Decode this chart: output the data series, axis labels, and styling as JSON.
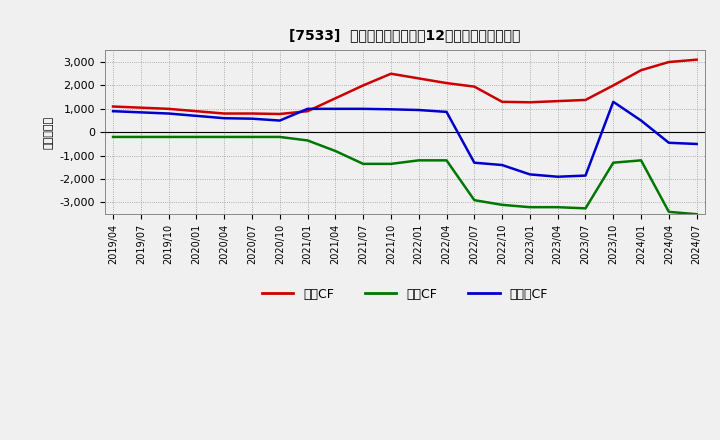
{
  "title": "[7533]  キャッシュフローの12か月移動合計の推移",
  "ylabel": "（百万円）",
  "background_color": "#f0f0f0",
  "plot_bg_color": "#f0f0f0",
  "grid_color": "#aaaaaa",
  "x_labels": [
    "2019/04",
    "2019/07",
    "2019/10",
    "2020/01",
    "2020/04",
    "2020/07",
    "2020/10",
    "2021/01",
    "2021/04",
    "2021/07",
    "2021/10",
    "2022/01",
    "2022/04",
    "2022/07",
    "2022/10",
    "2023/01",
    "2023/04",
    "2023/07",
    "2023/10",
    "2024/01",
    "2024/04",
    "2024/07"
  ],
  "operating_cf": [
    1100,
    1050,
    1000,
    900,
    800,
    800,
    780,
    900,
    1450,
    2000,
    2500,
    2300,
    2100,
    1950,
    1300,
    1280,
    1330,
    1380,
    2000,
    2650,
    3000,
    3100
  ],
  "investing_cf": [
    -200,
    -200,
    -200,
    -200,
    -200,
    -200,
    -200,
    -350,
    -800,
    -1350,
    -1350,
    -1200,
    -1200,
    -2900,
    -3100,
    -3200,
    -3200,
    -3250,
    -1300,
    -1200,
    -3400,
    -3500
  ],
  "free_cf": [
    900,
    850,
    800,
    700,
    600,
    580,
    500,
    1000,
    1000,
    1000,
    980,
    950,
    870,
    -1300,
    -1400,
    -1800,
    -1900,
    -1850,
    1300,
    500,
    -450,
    -500
  ],
  "ylim": [
    -3500,
    3500
  ],
  "yticks": [
    -3000,
    -2000,
    -1000,
    0,
    1000,
    2000,
    3000
  ],
  "line_colors": {
    "operating": "#cc0000",
    "investing": "#007700",
    "free": "#0000cc"
  },
  "legend_labels": [
    "営業CF",
    "投資CF",
    "フリーCF"
  ],
  "legend_colors": [
    "#cc0000",
    "#007700",
    "#0000cc"
  ]
}
